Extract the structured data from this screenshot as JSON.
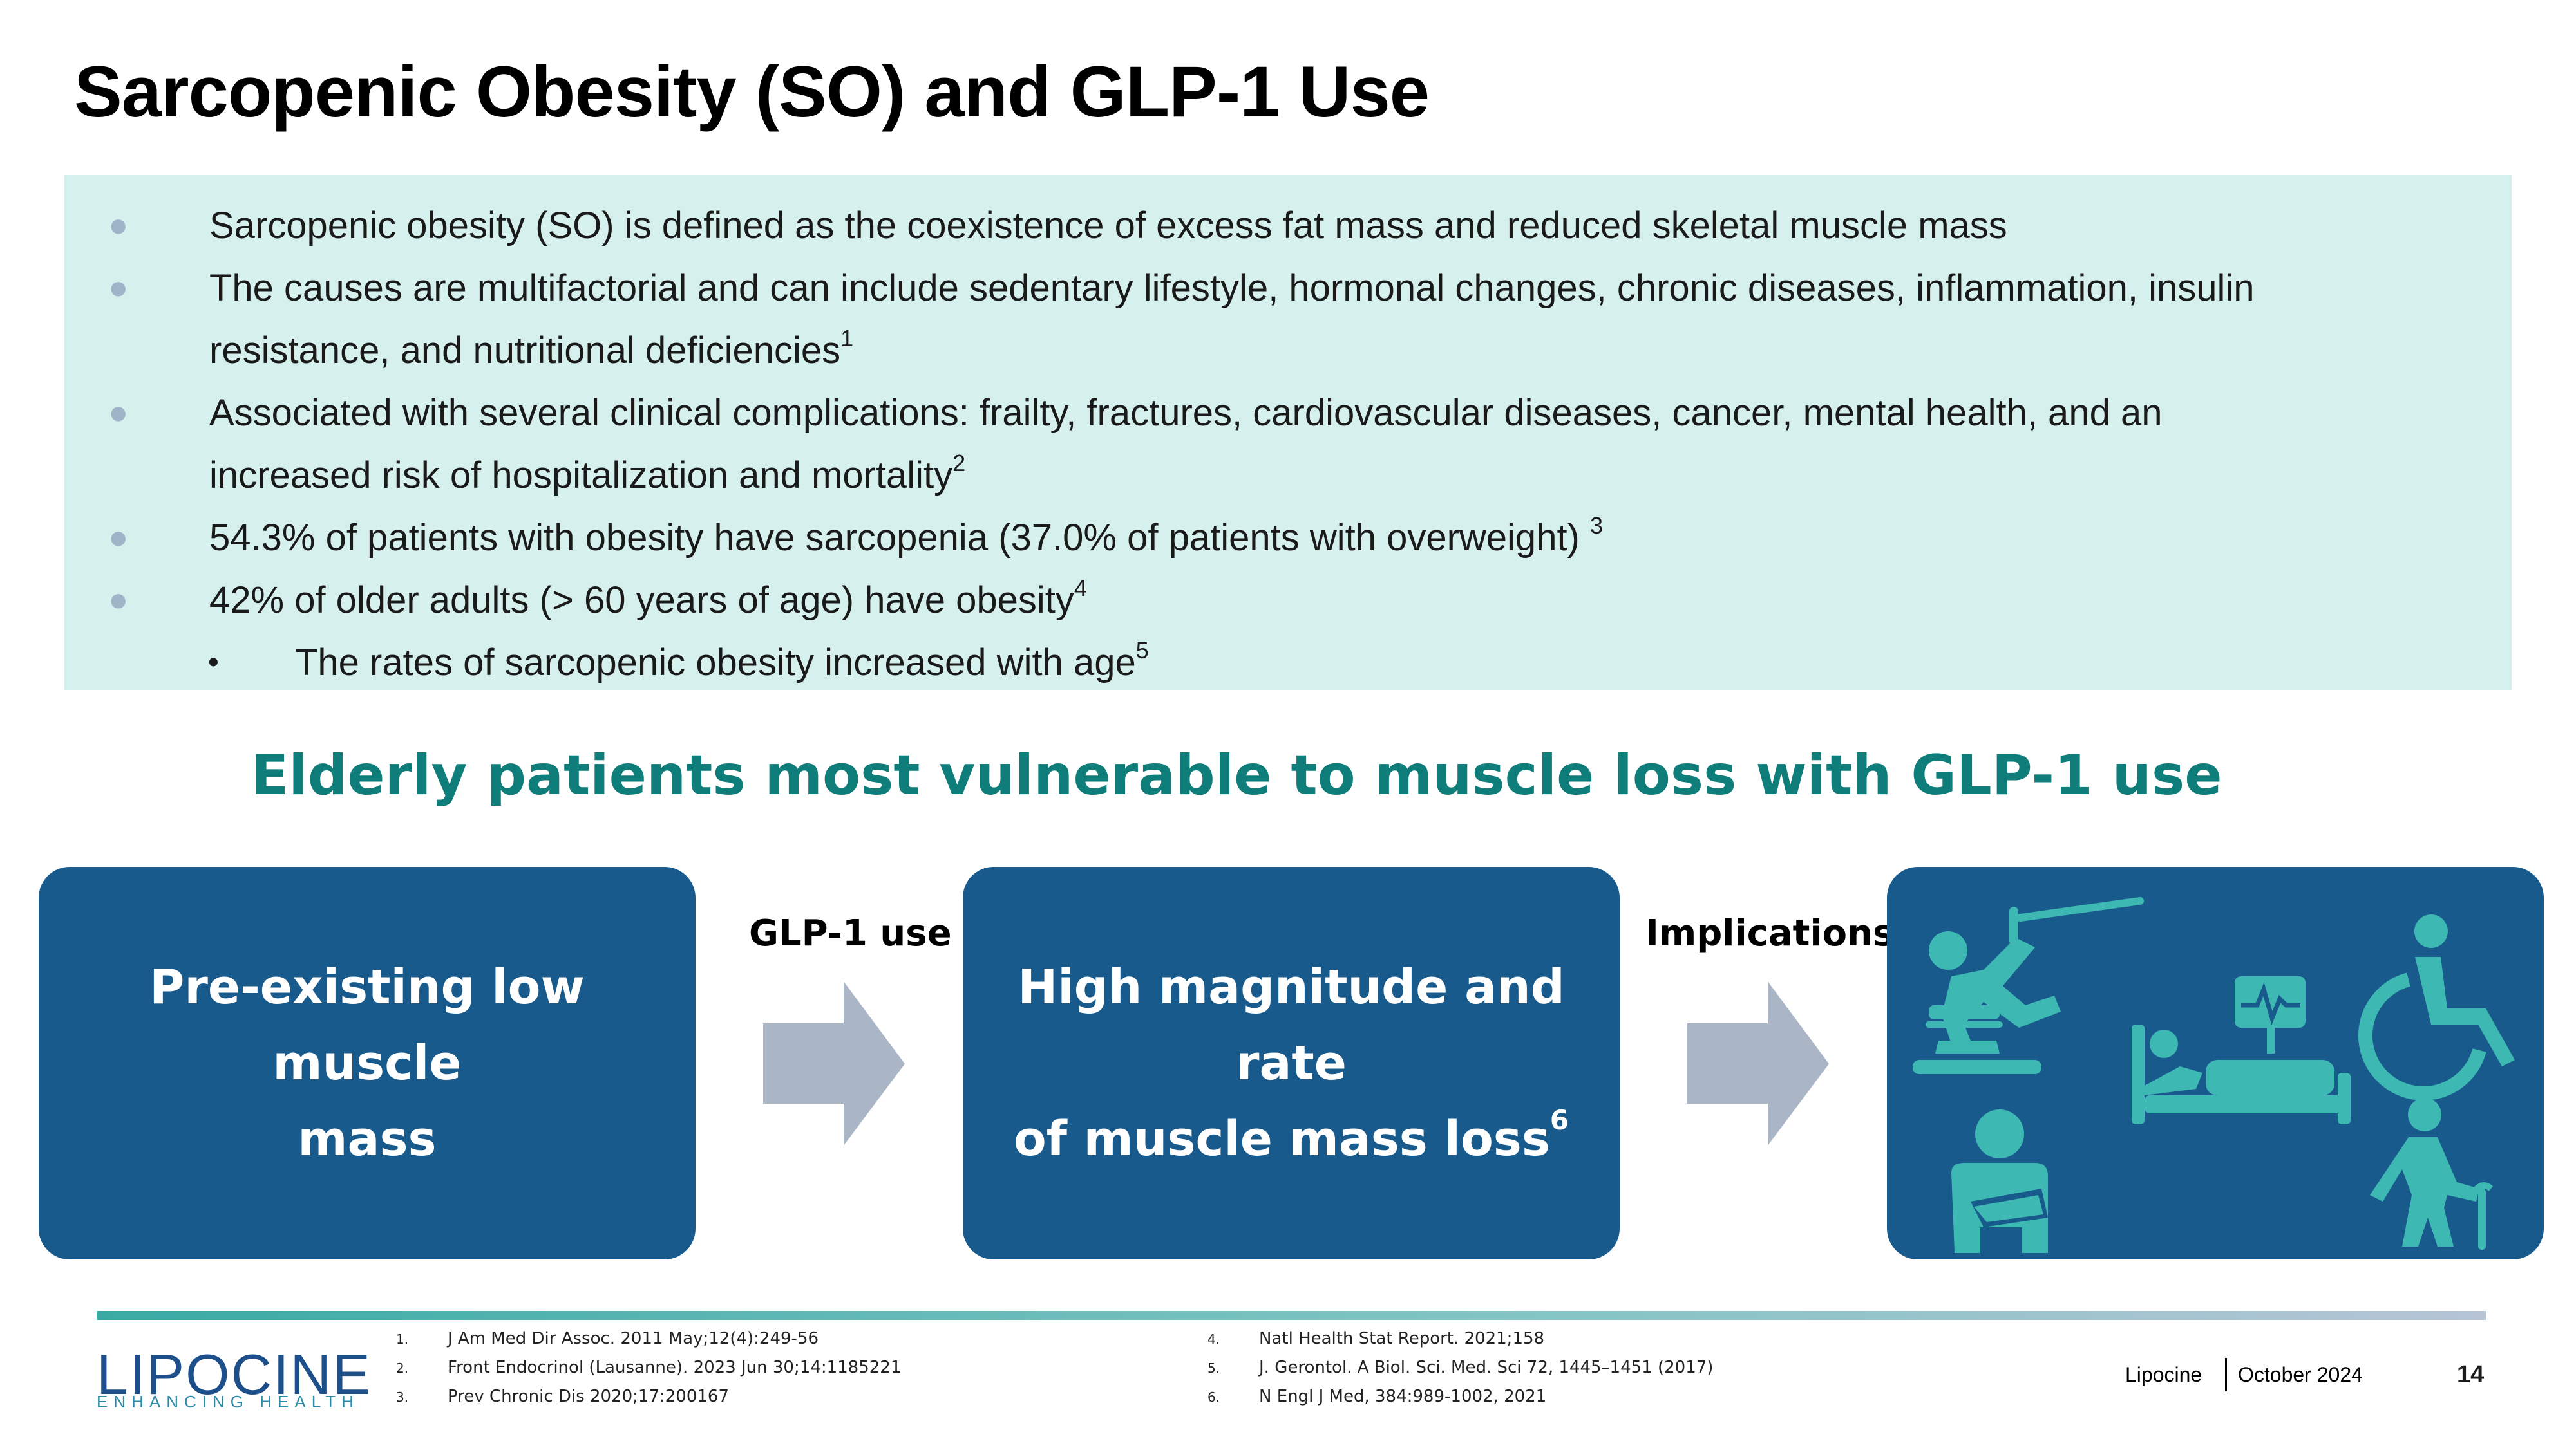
{
  "slide": {
    "title": "Sarcopenic Obesity (SO) and GLP-1 Use",
    "bullets": [
      {
        "dot": "●",
        "text": "Sarcopenic obesity (SO) is defined as the coexistence of excess fat mass and reduced skeletal muscle mass",
        "sup": ""
      },
      {
        "dot": "●",
        "text": "The causes are multifactorial and can include sedentary lifestyle, hormonal changes, chronic diseases, inflammation, insulin",
        "sup": ""
      },
      {
        "dot": "",
        "text": "resistance, and nutritional deficiencies",
        "sup": "1"
      },
      {
        "dot": "●",
        "text": "Associated with several clinical complications: frailty, fractures, cardiovascular diseases, cancer, mental health, and an",
        "sup": ""
      },
      {
        "dot": "",
        "text": "increased risk of hospitalization and mortality",
        "sup": "2"
      },
      {
        "dot": "●",
        "text": "54.3% of patients with obesity have sarcopenia (37.0% of patients with overweight) ",
        "sup": "3"
      },
      {
        "dot": "●",
        "text": "42% of older adults (> 60 years of age) have obesity",
        "sup": "4"
      }
    ],
    "sub_bullet": {
      "dot": "•",
      "text": "The rates of sarcopenic obesity increased with age",
      "sup": "5"
    },
    "subheading": "Elderly patients most vulnerable to muscle loss with GLP-1 use",
    "flow": {
      "card1_line1": "Pre-existing low muscle",
      "card1_line2": "mass",
      "arrow1_label": "GLP-1 use",
      "card2_line1": "High magnitude and rate",
      "card2_line2": "of muscle mass loss",
      "card2_sup": "6",
      "arrow2_label": "Implications",
      "icons": [
        "fall-icon",
        "hospital-bed-icon",
        "wheelchair-icon",
        "arm-sling-icon",
        "elderly-walking-cane-icon"
      ]
    },
    "references": [
      {
        "num": "1.",
        "text": "J Am Med Dir Assoc. 2011 May;12(4):249-56"
      },
      {
        "num": "2.",
        "text": "Front Endocrinol (Lausanne). 2023 Jun 30;14:1185221"
      },
      {
        "num": "3.",
        "text": "Prev Chronic Dis 2020;17:200167"
      },
      {
        "num": "4.",
        "text": "Natl Health Stat Report. 2021;158"
      },
      {
        "num": "5.",
        "text": " J. Gerontol. A Biol. Sci. Med. Sci 72, 1445–1451 (2017)"
      },
      {
        "num": "6.",
        "text": "N Engl J Med, 384:989-1002, 2021"
      }
    ],
    "logo": {
      "name": "LIPOCINE",
      "tagline": "ENHANCING HEALTH"
    },
    "footer": {
      "company": "Lipocine",
      "date": "October 2024",
      "page": "14"
    },
    "colors": {
      "accent": "#0f7d79",
      "card": "#175a8b",
      "icon": "#3db8b2",
      "box": "#d6f0ee",
      "arrow": "#aab6c6"
    }
  }
}
